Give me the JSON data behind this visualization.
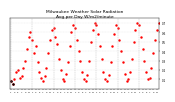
{
  "title": "Milwaukee Weather Solar Radiation\nAvg per Day W/m2/minute",
  "title_fontsize": 3.2,
  "values": [
    0.08,
    0.05,
    0.1,
    0.18,
    0.2,
    0.12,
    0.14,
    0.22,
    0.3,
    0.42,
    0.55,
    0.6,
    0.52,
    0.38,
    0.45,
    0.28,
    0.18,
    0.12,
    0.08,
    0.14,
    0.22,
    0.38,
    0.52,
    0.62,
    0.65,
    0.55,
    0.48,
    0.32,
    0.2,
    0.1,
    0.08,
    0.16,
    0.28,
    0.45,
    0.6,
    0.68,
    0.65,
    0.52,
    0.4,
    0.3,
    0.18,
    0.1,
    0.08,
    0.15,
    0.3,
    0.5,
    0.62,
    0.7,
    0.68,
    0.58,
    0.45,
    0.32,
    0.18,
    0.1,
    0.08,
    0.15,
    0.28,
    0.45,
    0.58,
    0.68,
    0.65,
    0.52,
    0.4,
    0.28,
    0.16,
    0.08,
    0.1,
    0.18,
    0.32,
    0.5,
    0.62,
    0.7,
    0.68,
    0.55,
    0.42,
    0.3,
    0.18,
    0.1,
    0.12,
    0.22,
    0.38,
    0.52,
    0.62,
    0.7
  ],
  "n_points": 84,
  "year_positions": [
    0,
    12,
    24,
    36,
    48,
    60,
    72
  ],
  "year_labels": [
    "'03",
    "'04",
    "'05",
    "'06",
    "'07",
    "'08",
    "'09"
  ],
  "x_tick_step": 2,
  "ylim": [
    0.0,
    0.75
  ],
  "y_ticks": [
    0.1,
    0.2,
    0.3,
    0.4,
    0.5,
    0.6,
    0.7
  ],
  "line_color": "#ff0000",
  "dot_color": "#ff0000",
  "black_color": "#000000",
  "grid_color": "#bbbbbb",
  "bg_color": "#ffffff"
}
